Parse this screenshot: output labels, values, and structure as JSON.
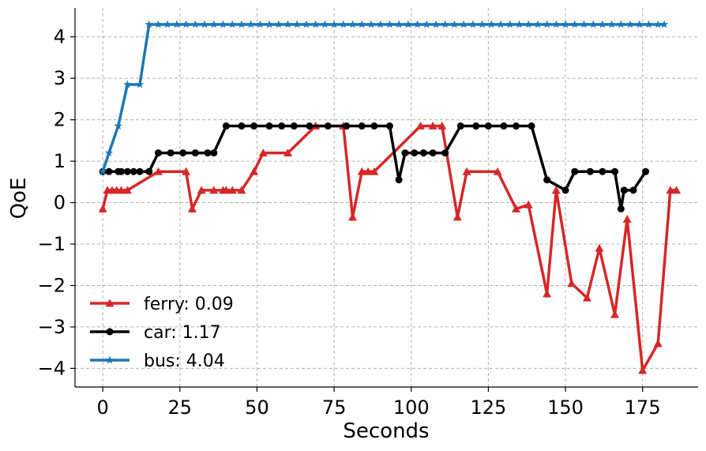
{
  "chart_data": {
    "type": "line",
    "title": "",
    "xlabel": "Seconds",
    "ylabel": "QoE",
    "xlim": [
      -9,
      193
    ],
    "ylim": [
      -4.45,
      4.7
    ],
    "xticks": [
      0,
      25,
      50,
      75,
      100,
      125,
      150,
      175
    ],
    "yticks": [
      4,
      3,
      2,
      1,
      0,
      -1,
      -2,
      -3,
      -4
    ],
    "ytick_labels": [
      "4",
      "3",
      "2",
      "1",
      "0",
      "−1",
      "−2",
      "−3",
      "−4"
    ],
    "xtick_labels": [
      "0",
      "25",
      "50",
      "75",
      "100",
      "125",
      "150",
      "175"
    ],
    "grid": true,
    "legend_position": "lower-left",
    "series": [
      {
        "name": "ferry: 0.09",
        "color": "#d62728",
        "marker": "triangle",
        "x": [
          0,
          1.5,
          3,
          4.5,
          6,
          8,
          18,
          27,
          29,
          32,
          36,
          39,
          40,
          42,
          45,
          49,
          52,
          60,
          69,
          78,
          81,
          84,
          86,
          88,
          103,
          107,
          110,
          115,
          118,
          128,
          134,
          138,
          144,
          147,
          152,
          157,
          161,
          166,
          170,
          175,
          180,
          184,
          186
        ],
        "y": [
          -0.15,
          0.3,
          0.3,
          0.3,
          0.3,
          0.3,
          0.75,
          0.75,
          -0.15,
          0.3,
          0.3,
          0.3,
          0.3,
          0.3,
          0.3,
          0.75,
          1.2,
          1.2,
          1.85,
          1.85,
          -0.35,
          0.75,
          0.75,
          0.75,
          1.85,
          1.85,
          1.85,
          -0.35,
          0.75,
          0.75,
          -0.15,
          -0.05,
          -2.2,
          0.3,
          -1.95,
          -2.3,
          -1.1,
          -2.7,
          -0.4,
          -4.05,
          -3.4,
          0.3,
          0.3
        ]
      },
      {
        "name": "car: 1.17",
        "color": "#000000",
        "marker": "circle",
        "x": [
          0,
          2,
          5,
          6,
          8,
          10,
          12,
          15,
          18,
          22,
          26,
          30,
          34,
          36,
          40,
          45,
          49,
          54,
          58,
          62,
          67,
          73,
          79,
          84,
          88,
          93,
          96,
          98,
          101,
          104,
          107,
          111,
          116,
          121,
          125,
          130,
          134,
          139,
          144,
          150,
          153,
          158,
          162,
          166,
          168,
          169,
          172,
          176
        ],
        "y": [
          0.75,
          0.75,
          0.75,
          0.75,
          0.75,
          0.75,
          0.75,
          0.75,
          1.2,
          1.2,
          1.2,
          1.2,
          1.2,
          1.2,
          1.85,
          1.85,
          1.85,
          1.85,
          1.85,
          1.85,
          1.85,
          1.85,
          1.85,
          1.85,
          1.85,
          1.85,
          0.55,
          1.2,
          1.2,
          1.2,
          1.2,
          1.2,
          1.85,
          1.85,
          1.85,
          1.85,
          1.85,
          1.85,
          0.55,
          0.3,
          0.75,
          0.75,
          0.75,
          0.75,
          -0.15,
          0.3,
          0.3,
          0.75
        ]
      },
      {
        "name": "bus: 4.04",
        "color": "#1f77b4",
        "marker": "star",
        "x": [
          0,
          2,
          5,
          8,
          12,
          15,
          18,
          21,
          24,
          27,
          30,
          33,
          36,
          39,
          42,
          45,
          48,
          51,
          54,
          57,
          60,
          63,
          66,
          69,
          72,
          75,
          78,
          81,
          84,
          87,
          90,
          93,
          96,
          99,
          102,
          105,
          108,
          111,
          114,
          117,
          120,
          123,
          126,
          129,
          132,
          135,
          138,
          141,
          144,
          147,
          150,
          153,
          156,
          159,
          162,
          165,
          168,
          171,
          174,
          177,
          180,
          182
        ],
        "y": [
          0.75,
          1.2,
          1.85,
          2.85,
          2.85,
          4.3,
          4.3,
          4.3,
          4.3,
          4.3,
          4.3,
          4.3,
          4.3,
          4.3,
          4.3,
          4.3,
          4.3,
          4.3,
          4.3,
          4.3,
          4.3,
          4.3,
          4.3,
          4.3,
          4.3,
          4.3,
          4.3,
          4.3,
          4.3,
          4.3,
          4.3,
          4.3,
          4.3,
          4.3,
          4.3,
          4.3,
          4.3,
          4.3,
          4.3,
          4.3,
          4.3,
          4.3,
          4.3,
          4.3,
          4.3,
          4.3,
          4.3,
          4.3,
          4.3,
          4.3,
          4.3,
          4.3,
          4.3,
          4.3,
          4.3,
          4.3,
          4.3,
          4.3,
          4.3,
          4.3,
          4.3,
          4.3
        ]
      }
    ]
  }
}
